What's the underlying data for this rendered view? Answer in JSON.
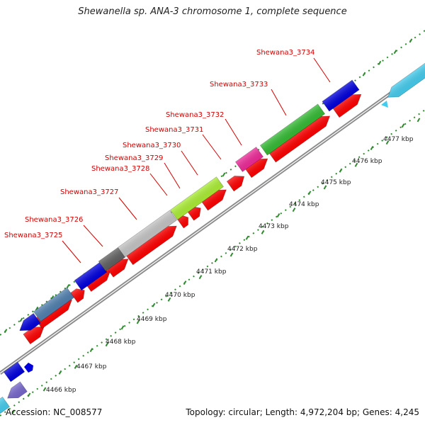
{
  "title": "Shewanella sp. ANA-3 chromosome 1, complete sequence",
  "accession": "Accession: NC_008577",
  "topology_info": "Topology: circular; Length: 4,972,204 bp; Genes: 4,245",
  "colors": {
    "backbone": "#8c8c8c",
    "tick_green": "#2e8b2e",
    "label_red": "#d40000",
    "forward_red": "#ff0000",
    "blue": "#0000dd",
    "steelblue": "#4f7fae",
    "darkgray": "#606060",
    "lightgray": "#c4c4c4",
    "lime": "#aaee33",
    "green": "#33bb33",
    "magenta": "#ee2a99",
    "cyan": "#44ccee",
    "slateblue": "#7766cc"
  },
  "gene_labels": [
    "Shewana3_3725",
    "Shewana3_3726",
    "Shewana3_3727",
    "Shewana3_3728",
    "Shewana3_3729",
    "Shewana3_3730",
    "Shewana3_3731",
    "Shewana3_3732",
    "Shewana3_3733",
    "Shewana3_3734"
  ],
  "kbp_labels": [
    "4466 kbp",
    "4467 kbp",
    "4468 kbp",
    "4469 kbp",
    "4470 kbp",
    "4471 kbp",
    "4472 kbp",
    "4473 kbp",
    "4474 kbp",
    "4475 kbp",
    "4476 kbp",
    "4477 kbp"
  ]
}
